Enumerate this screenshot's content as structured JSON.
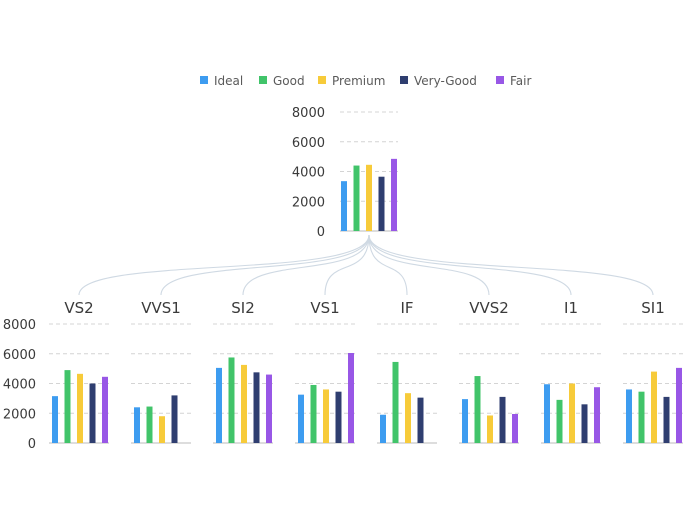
{
  "chart_data": {
    "type": "bar",
    "legend": {
      "placement": "top",
      "items": [
        "Ideal",
        "Good",
        "Premium",
        "Very-Good",
        "Fair"
      ]
    },
    "colors": [
      "#3d9cf0",
      "#41c46a",
      "#f7cb3a",
      "#2f3e70",
      "#9857e6"
    ],
    "grid": true,
    "parent": {
      "ylim": [
        0,
        8000
      ],
      "yticks": [
        0,
        2000,
        4000,
        6000,
        8000
      ],
      "series": [
        {
          "name": "Ideal",
          "value": 3350
        },
        {
          "name": "Good",
          "value": 4400
        },
        {
          "name": "Premium",
          "value": 4450
        },
        {
          "name": "Very-Good",
          "value": 3650
        },
        {
          "name": "Fair",
          "value": 4850
        }
      ]
    },
    "children": [
      {
        "title": "VS2",
        "values": [
          3150,
          4900,
          4650,
          4000,
          4450
        ]
      },
      {
        "title": "VVS1",
        "values": [
          2400,
          2450,
          1800,
          3200,
          null
        ]
      },
      {
        "title": "SI2",
        "values": [
          5050,
          5750,
          5250,
          4750,
          4600
        ]
      },
      {
        "title": "VS1",
        "values": [
          3250,
          3900,
          3600,
          3450,
          6050
        ]
      },
      {
        "title": "IF",
        "values": [
          1900,
          5450,
          3350,
          3050,
          null
        ]
      },
      {
        "title": "VVS2",
        "values": [
          2950,
          4500,
          1850,
          3100,
          1950
        ]
      },
      {
        "title": "I1",
        "values": [
          3950,
          2900,
          4000,
          2600,
          3750
        ]
      },
      {
        "title": "SI1",
        "values": [
          3600,
          3450,
          4800,
          3100,
          5050
        ]
      }
    ],
    "child_ylim": [
      0,
      8000
    ],
    "child_yticks": [
      0,
      2000,
      4000,
      6000,
      8000
    ]
  }
}
